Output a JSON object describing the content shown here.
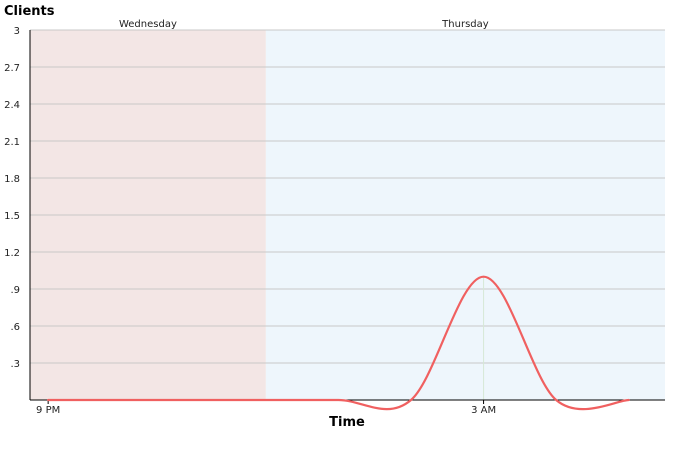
{
  "chart_data": {
    "type": "line",
    "title": "",
    "ylabel": "Clients",
    "xlabel": "Time",
    "ylim": [
      0,
      3
    ],
    "yticks": [
      "3",
      "2.7",
      "2.4",
      "2.1",
      "1.8",
      "1.5",
      "1.2",
      ".9",
      ".6",
      ".3"
    ],
    "ytick_values": [
      3,
      2.7,
      2.4,
      2.1,
      1.8,
      1.5,
      1.2,
      0.9,
      0.6,
      0.3
    ],
    "xlim": [
      "2000-01-05T20:45",
      "2000-01-06T05:30"
    ],
    "xticks": [
      {
        "label": "9 PM",
        "value": "2000-01-05T21:00"
      },
      {
        "label": "3 AM",
        "value": "2000-01-06T03:00"
      }
    ],
    "day_bands": [
      {
        "label": "Wednesday",
        "start": "2000-01-05T20:45",
        "end": "2000-01-06T00:00",
        "color": "#f3e6e5"
      },
      {
        "label": "Thursday",
        "start": "2000-01-06T00:00",
        "end": "2000-01-06T05:30",
        "color": "#eef6fc"
      }
    ],
    "grid": true,
    "series": [
      {
        "color": "#f06060",
        "points": [
          [
            "2000-01-05T21:00",
            0
          ],
          [
            "2000-01-06T00:00",
            0
          ],
          [
            "2000-01-06T01:00",
            0
          ],
          [
            "2000-01-06T02:00",
            0
          ],
          [
            "2000-01-06T03:00",
            1
          ],
          [
            "2000-01-06T04:00",
            0
          ],
          [
            "2000-01-06T05:00",
            0
          ]
        ]
      }
    ]
  }
}
